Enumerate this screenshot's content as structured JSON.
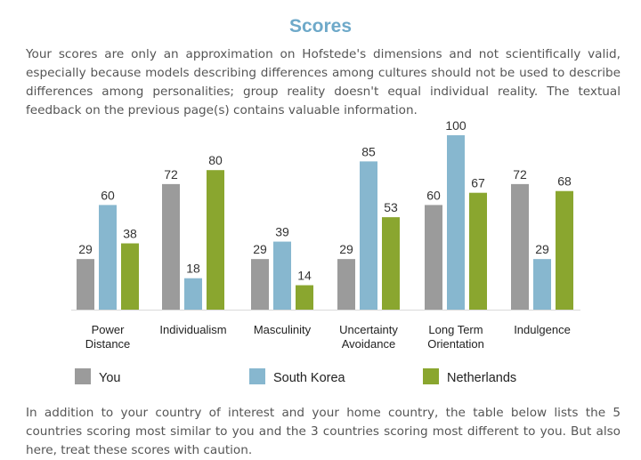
{
  "page": {
    "title": "Scores",
    "intro": "Your scores are only an approximation on Hofstede's dimensions and not scientifically valid, especially because models describing differences among cultures should not be used to describe differences among personalities; group reality doesn't equal individual reality. The textual feedback on the previous page(s) contains valuable information.",
    "outro": "In addition to your country of interest and your home country, the table below lists the 5 countries scoring most similar to you and the 3 countries scoring most different to you. But also here, treat these scores with caution."
  },
  "chart_data": {
    "type": "bar",
    "categories": [
      [
        "Power",
        "Distance"
      ],
      [
        "Individualism"
      ],
      [
        "Masculinity"
      ],
      [
        "Uncertainty",
        "Avoidance"
      ],
      [
        "Long Term",
        "Orientation"
      ],
      [
        "Indulgence"
      ]
    ],
    "series": [
      {
        "name": "You",
        "color": "#9b9b9b",
        "values": [
          29,
          72,
          29,
          29,
          60,
          72
        ]
      },
      {
        "name": "South Korea",
        "color": "#87b7cf",
        "values": [
          60,
          18,
          39,
          85,
          100,
          29
        ]
      },
      {
        "name": "Netherlands",
        "color": "#8aa62f",
        "values": [
          38,
          80,
          14,
          53,
          67,
          68
        ]
      }
    ],
    "ylim": [
      0,
      100
    ],
    "grid": false,
    "legend_position": "bottom"
  }
}
